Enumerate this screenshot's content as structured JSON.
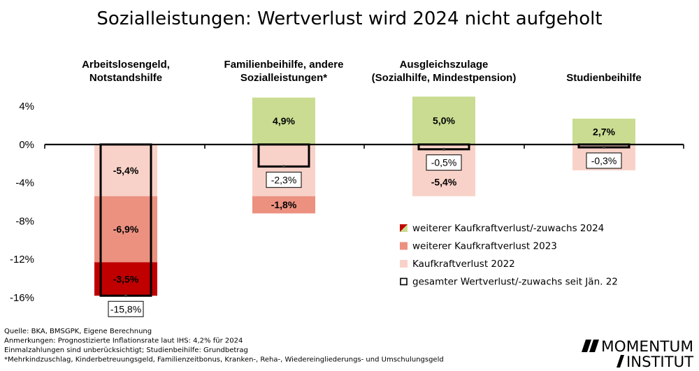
{
  "logo": {
    "line1": "MOMENTUM",
    "line2": "INSTITUT"
  },
  "colors": {
    "light": "#f8d2c8",
    "medium": "#ec9180",
    "dark": "#c00000",
    "green": "#c9dc91",
    "axis": "#000000"
  },
  "chart_data": {
    "type": "bar",
    "title": "Sozialleistungen: Wertverlust wird 2024 nicht aufgeholt",
    "ylim": [
      -16,
      4
    ],
    "yticks": [
      4,
      0,
      -4,
      -8,
      -12,
      -16
    ],
    "ytick_labels": [
      "4%",
      "0%",
      "-4%",
      "-8%",
      "-12%",
      "-16%"
    ],
    "categories": [
      {
        "lines": [
          "Arbeitslosengeld,",
          "Notstandshilfe"
        ]
      },
      {
        "lines": [
          "Familienbeihilfe, andere",
          "Sozialleistungen*"
        ]
      },
      {
        "lines": [
          "Ausgleichszulage",
          "(Sozialhilfe, Mindestpension)"
        ]
      },
      {
        "lines": [
          "Studienbeihilfe"
        ]
      }
    ],
    "series": [
      {
        "name": "weiterer Kaufkraftverlust/-zuwachs 2024",
        "key": "s2024",
        "values": [
          -3.5,
          4.9,
          5.0,
          2.7
        ],
        "labels": [
          "-3,5%",
          "4,9%",
          "5,0%",
          "2,7%"
        ]
      },
      {
        "name": "weiterer Kaufkraftverlust 2023",
        "key": "s2023",
        "values": [
          -6.9,
          -1.8,
          0,
          0
        ],
        "labels": [
          "-6,9%",
          "-1,8%",
          "",
          ""
        ]
      },
      {
        "name": "Kaufkraftverlust 2022",
        "key": "s2022",
        "values": [
          -5.4,
          -5.4,
          -5.4,
          -2.7
        ],
        "labels": [
          "-5,4%",
          "",
          "-5,4%",
          ""
        ]
      }
    ],
    "totals": {
      "name": "gesamter Wertverlust/-zuwachs seit Jän. 22",
      "values": [
        -15.8,
        -2.3,
        -0.5,
        -0.3
      ],
      "labels": [
        "-15,8%",
        "-2,3%",
        "-0,5%",
        "-0,3%"
      ]
    }
  },
  "notes": [
    "Quelle: BKA, BMSGPK, Eigene Berechnung",
    "Anmerkungen: Prognostizierte Inflationsrate laut IHS: 4,2% für 2024",
    " Einmalzahlungen sind unberücksichtigt; Studienbeihilfe: Grundbetrag",
    "*Mehrkindzuschlag, Kinderbetreuungsgeld, Familienzeitbonus, Kranken-, Reha-, Wiedereingliederungs- und Umschulungsgeld"
  ]
}
